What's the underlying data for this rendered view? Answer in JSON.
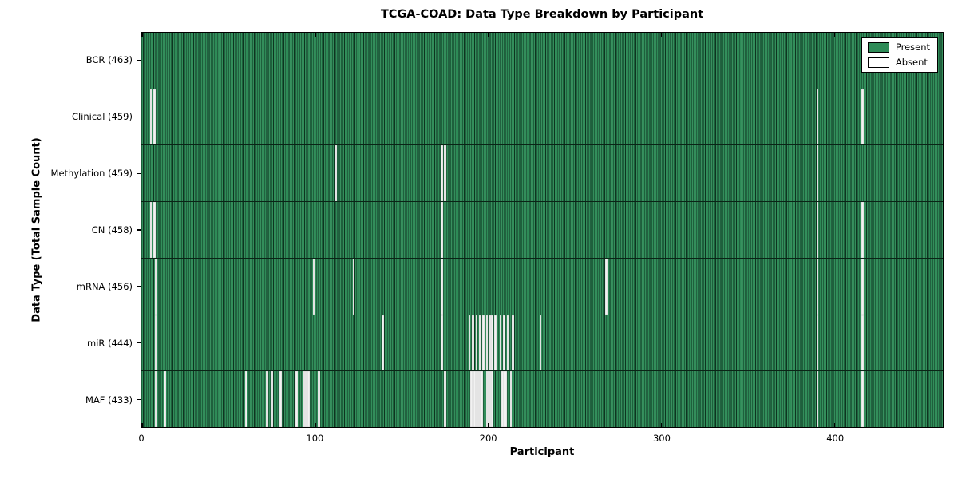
{
  "title": "TCGA-COAD: Data Type Breakdown by Participant",
  "x_axis_label": "Participant",
  "y_axis_label": "Data Type (Total Sample Count)",
  "colors": {
    "present_green": "#2e8b57",
    "bar_edge_dark": "#0d3520",
    "absent_white": "#f2f2f2",
    "axis_black": "#000000",
    "background": "#ffffff"
  },
  "chart_data": {
    "type": "heatmap",
    "title": "TCGA-COAD: Data Type Breakdown by Participant",
    "xlabel": "Participant",
    "ylabel": "Data Type (Total Sample Count)",
    "total_participants": 463,
    "x_ticks": [
      0,
      100,
      200,
      300,
      400
    ],
    "xlim": [
      0,
      463
    ],
    "grid": false,
    "legend_position": "upper right",
    "legend": [
      {
        "label": "Present",
        "color": "#2e8b57"
      },
      {
        "label": "Absent",
        "color": "#ffffff"
      }
    ],
    "rows": [
      {
        "name": "BCR",
        "count": 463,
        "absent": []
      },
      {
        "name": "Clinical",
        "count": 459,
        "absent": [
          5,
          7,
          390,
          416
        ]
      },
      {
        "name": "Methylation",
        "count": 459,
        "absent": [
          112,
          173,
          175,
          390
        ]
      },
      {
        "name": "CN",
        "count": 458,
        "absent": [
          5,
          7,
          173,
          390,
          416
        ]
      },
      {
        "name": "mRNA",
        "count": 456,
        "absent": [
          8,
          99,
          122,
          173,
          268,
          390,
          416
        ]
      },
      {
        "name": "miR",
        "count": 444,
        "absent": [
          8,
          139,
          173,
          189,
          191,
          193,
          195,
          197,
          199,
          201,
          202,
          204,
          207,
          209,
          211,
          214,
          230,
          390,
          416
        ]
      },
      {
        "name": "MAF",
        "count": 433,
        "absent": [
          8,
          13,
          60,
          72,
          75,
          80,
          89,
          93,
          94,
          95,
          96,
          102,
          175,
          190,
          191,
          192,
          193,
          194,
          195,
          196,
          199,
          200,
          201,
          202,
          208,
          209,
          210,
          213,
          390,
          416
        ]
      }
    ],
    "row_label_format": "{name} ({count})"
  }
}
